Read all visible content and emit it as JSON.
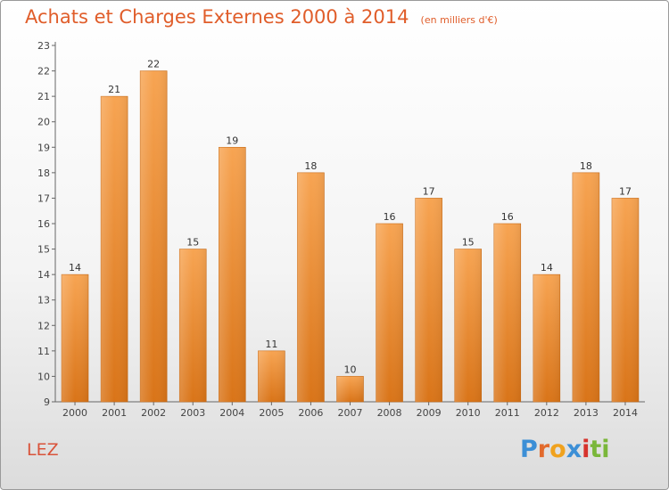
{
  "chart_data": {
    "type": "bar",
    "title": "Achats et Charges Externes 2000 à 2014",
    "subtitle": "(en milliers d'€)",
    "categories": [
      "2000",
      "2001",
      "2002",
      "2003",
      "2004",
      "2005",
      "2006",
      "2007",
      "2008",
      "2009",
      "2010",
      "2011",
      "2012",
      "2013",
      "2014"
    ],
    "values": [
      14,
      21,
      22,
      15,
      19,
      11,
      18,
      10,
      16,
      17,
      15,
      16,
      14,
      18,
      17
    ],
    "ylim": [
      9,
      23
    ],
    "yticks": [
      9,
      10,
      11,
      12,
      13,
      14,
      15,
      16,
      17,
      18,
      19,
      20,
      21,
      22,
      23
    ],
    "xlabel": "",
    "ylabel": "",
    "grid": false,
    "bar_color": "#f08a2a"
  },
  "commune": "LEZ",
  "brand": {
    "text": "Proxiti",
    "letters": [
      "P",
      "r",
      "o",
      "x",
      "i",
      "t",
      "i"
    ]
  }
}
